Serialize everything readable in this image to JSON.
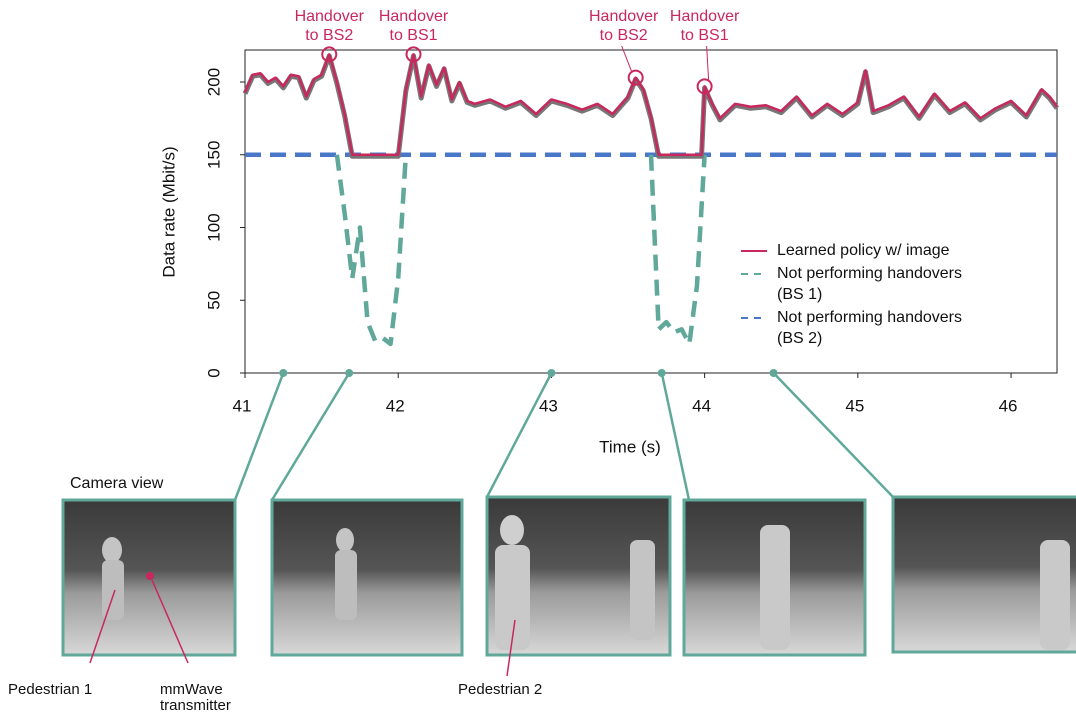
{
  "chart_data": {
    "type": "line",
    "xlabel": "Time (s)",
    "ylabel": "Data rate (Mbit/s)",
    "xlim": [
      41,
      46.3
    ],
    "ylim": [
      0,
      222
    ],
    "xticks": [
      41,
      42,
      43,
      44,
      45,
      46
    ],
    "yticks": [
      0,
      50,
      100,
      150,
      200
    ],
    "legend": "right",
    "series": [
      {
        "name": "Learned policy w/ image",
        "color": "#c8285c",
        "style": "solid",
        "x": [
          41,
          41.05,
          41.1,
          41.15,
          41.2,
          41.25,
          41.3,
          41.35,
          41.4,
          41.45,
          41.5,
          41.55,
          41.6,
          41.65,
          41.7,
          42.0,
          42.05,
          42.1,
          42.15,
          42.2,
          42.25,
          42.3,
          42.35,
          42.4,
          42.45,
          42.5,
          42.6,
          42.7,
          42.8,
          42.9,
          43.0,
          43.1,
          43.2,
          43.3,
          43.4,
          43.5,
          43.55,
          43.6,
          43.65,
          43.7,
          43.98,
          44.0,
          44.05,
          44.1,
          44.2,
          44.3,
          44.4,
          44.5,
          44.6,
          44.7,
          44.8,
          44.9,
          45.0,
          45.05,
          45.1,
          45.2,
          45.3,
          45.4,
          45.5,
          45.6,
          45.7,
          45.8,
          45.9,
          46.0,
          46.1,
          46.2,
          46.25,
          46.3
        ],
        "values": [
          193,
          205,
          206,
          200,
          203,
          197,
          205,
          204,
          190,
          202,
          205,
          219,
          200,
          178,
          150,
          150,
          195,
          219,
          190,
          212,
          198,
          210,
          188,
          200,
          187,
          185,
          188,
          183,
          187,
          178,
          188,
          185,
          181,
          185,
          178,
          190,
          203,
          195,
          176,
          150,
          150,
          197,
          185,
          175,
          185,
          183,
          184,
          180,
          190,
          177,
          185,
          178,
          186,
          208,
          180,
          184,
          190,
          176,
          192,
          180,
          186,
          175,
          182,
          187,
          177,
          195,
          190,
          183
        ]
      },
      {
        "name": "Not performing handovers (BS 1)",
        "color": "#5fa89a",
        "style": "dashed",
        "x": [
          41.6,
          41.65,
          41.7,
          41.75,
          41.8,
          41.85,
          41.9,
          41.95,
          42.0,
          42.05,
          42.1,
          43.65,
          43.7,
          43.75,
          43.8,
          43.85,
          43.9,
          43.95,
          44.0
        ],
        "values": [
          150,
          110,
          65,
          100,
          35,
          22,
          24,
          20,
          65,
          150,
          null,
          150,
          30,
          35,
          28,
          30,
          20,
          60,
          150
        ]
      },
      {
        "name": "Not performing handovers (BS 2)",
        "color": "#4a78c8",
        "style": "dashed",
        "x": [
          41,
          46.3
        ],
        "values": [
          150,
          150
        ]
      }
    ],
    "annotations": [
      {
        "lines": [
          "Handover",
          "to BS2"
        ],
        "x": 41.55,
        "y": 219
      },
      {
        "lines": [
          "Handover",
          "to BS1"
        ],
        "x": 42.1,
        "y": 219
      },
      {
        "lines": [
          "Handover",
          "to BS2"
        ],
        "x": 43.55,
        "y": 203
      },
      {
        "lines": [
          "Handover",
          "to BS1"
        ],
        "x": 44.0,
        "y": 197
      }
    ],
    "snapshots": [
      41.25,
      41.68,
      43.0,
      43.72,
      44.45
    ]
  },
  "camera_panel": {
    "title": "Camera view",
    "pedestrian_1": "Pedestrian 1",
    "transmitter": [
      "mmWave",
      "transmitter"
    ],
    "pedestrian_2": "Pedestrian 2"
  }
}
